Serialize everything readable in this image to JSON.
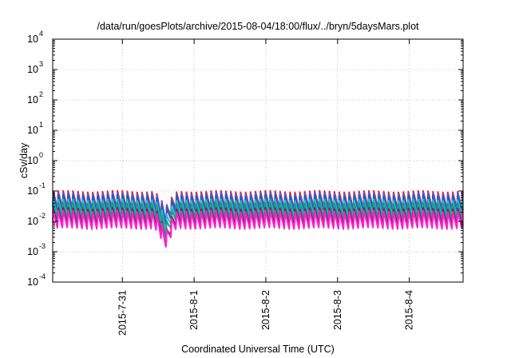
{
  "chart_data": {
    "type": "line",
    "title": "/data/run/goesPlots/archive/2015-08-04/18:00/flux/../bryn/5daysMars.plot",
    "xlabel": "Coordinated Universal Time (UTC)",
    "ylabel": "cSv/day",
    "y_scale": "log",
    "ylim": [
      0.0001,
      10000
    ],
    "y_ticks": [
      {
        "value": 0.0001,
        "base": "10",
        "exp": "-4"
      },
      {
        "value": 0.001,
        "base": "10",
        "exp": "-3"
      },
      {
        "value": 0.01,
        "base": "10",
        "exp": "-2"
      },
      {
        "value": 0.1,
        "base": "10",
        "exp": "-1"
      },
      {
        "value": 1,
        "base": "10",
        "exp": "0"
      },
      {
        "value": 10,
        "base": "10",
        "exp": "1"
      },
      {
        "value": 100,
        "base": "10",
        "exp": "2"
      },
      {
        "value": 1000,
        "base": "10",
        "exp": "3"
      },
      {
        "value": 10000,
        "base": "10",
        "exp": "4"
      }
    ],
    "xlim": [
      "2015-07-30 00:41",
      "2015-08-04 18:00"
    ],
    "x_ticks": [
      {
        "value": "2015-07-31 00:00",
        "label": "2015-7-31"
      },
      {
        "value": "2015-08-01 00:00",
        "label": "2015-8-1"
      },
      {
        "value": "2015-08-02 00:00",
        "label": "2015-8-2"
      },
      {
        "value": "2015-08-03 00:00",
        "label": "2015-8-3"
      },
      {
        "value": "2015-08-04 00:00",
        "label": "2015-8-4"
      }
    ],
    "grid": true,
    "legend": "none",
    "series_style": {
      "pattern": "sawtooth",
      "period_hours": 1.65,
      "dip_center": "2015-07-31 14:30",
      "dip_width_hours": 4.5
    },
    "series": [
      {
        "color": "#e8202a",
        "peak": 0.098,
        "trough": 0.025,
        "dip_factor": 0.34
      },
      {
        "color": "#1f77ff",
        "peak": 0.082,
        "trough": 0.021,
        "dip_factor": 0.36
      },
      {
        "color": "#2a56c8",
        "peak": 0.072,
        "trough": 0.019,
        "dip_factor": 0.37
      },
      {
        "color": "#17c9c2",
        "peak": 0.052,
        "trough": 0.014,
        "dip_factor": 0.3
      },
      {
        "color": "#1d9c80",
        "peak": 0.04,
        "trough": 0.011,
        "dip_factor": 0.24
      },
      {
        "color": "#7a1f64",
        "peak": 0.027,
        "trough": 0.0072,
        "dip_factor": 0.19
      },
      {
        "color": "#ff22cc",
        "peak": 0.022,
        "trough": 0.0055,
        "dip_factor": 0.23
      }
    ]
  }
}
